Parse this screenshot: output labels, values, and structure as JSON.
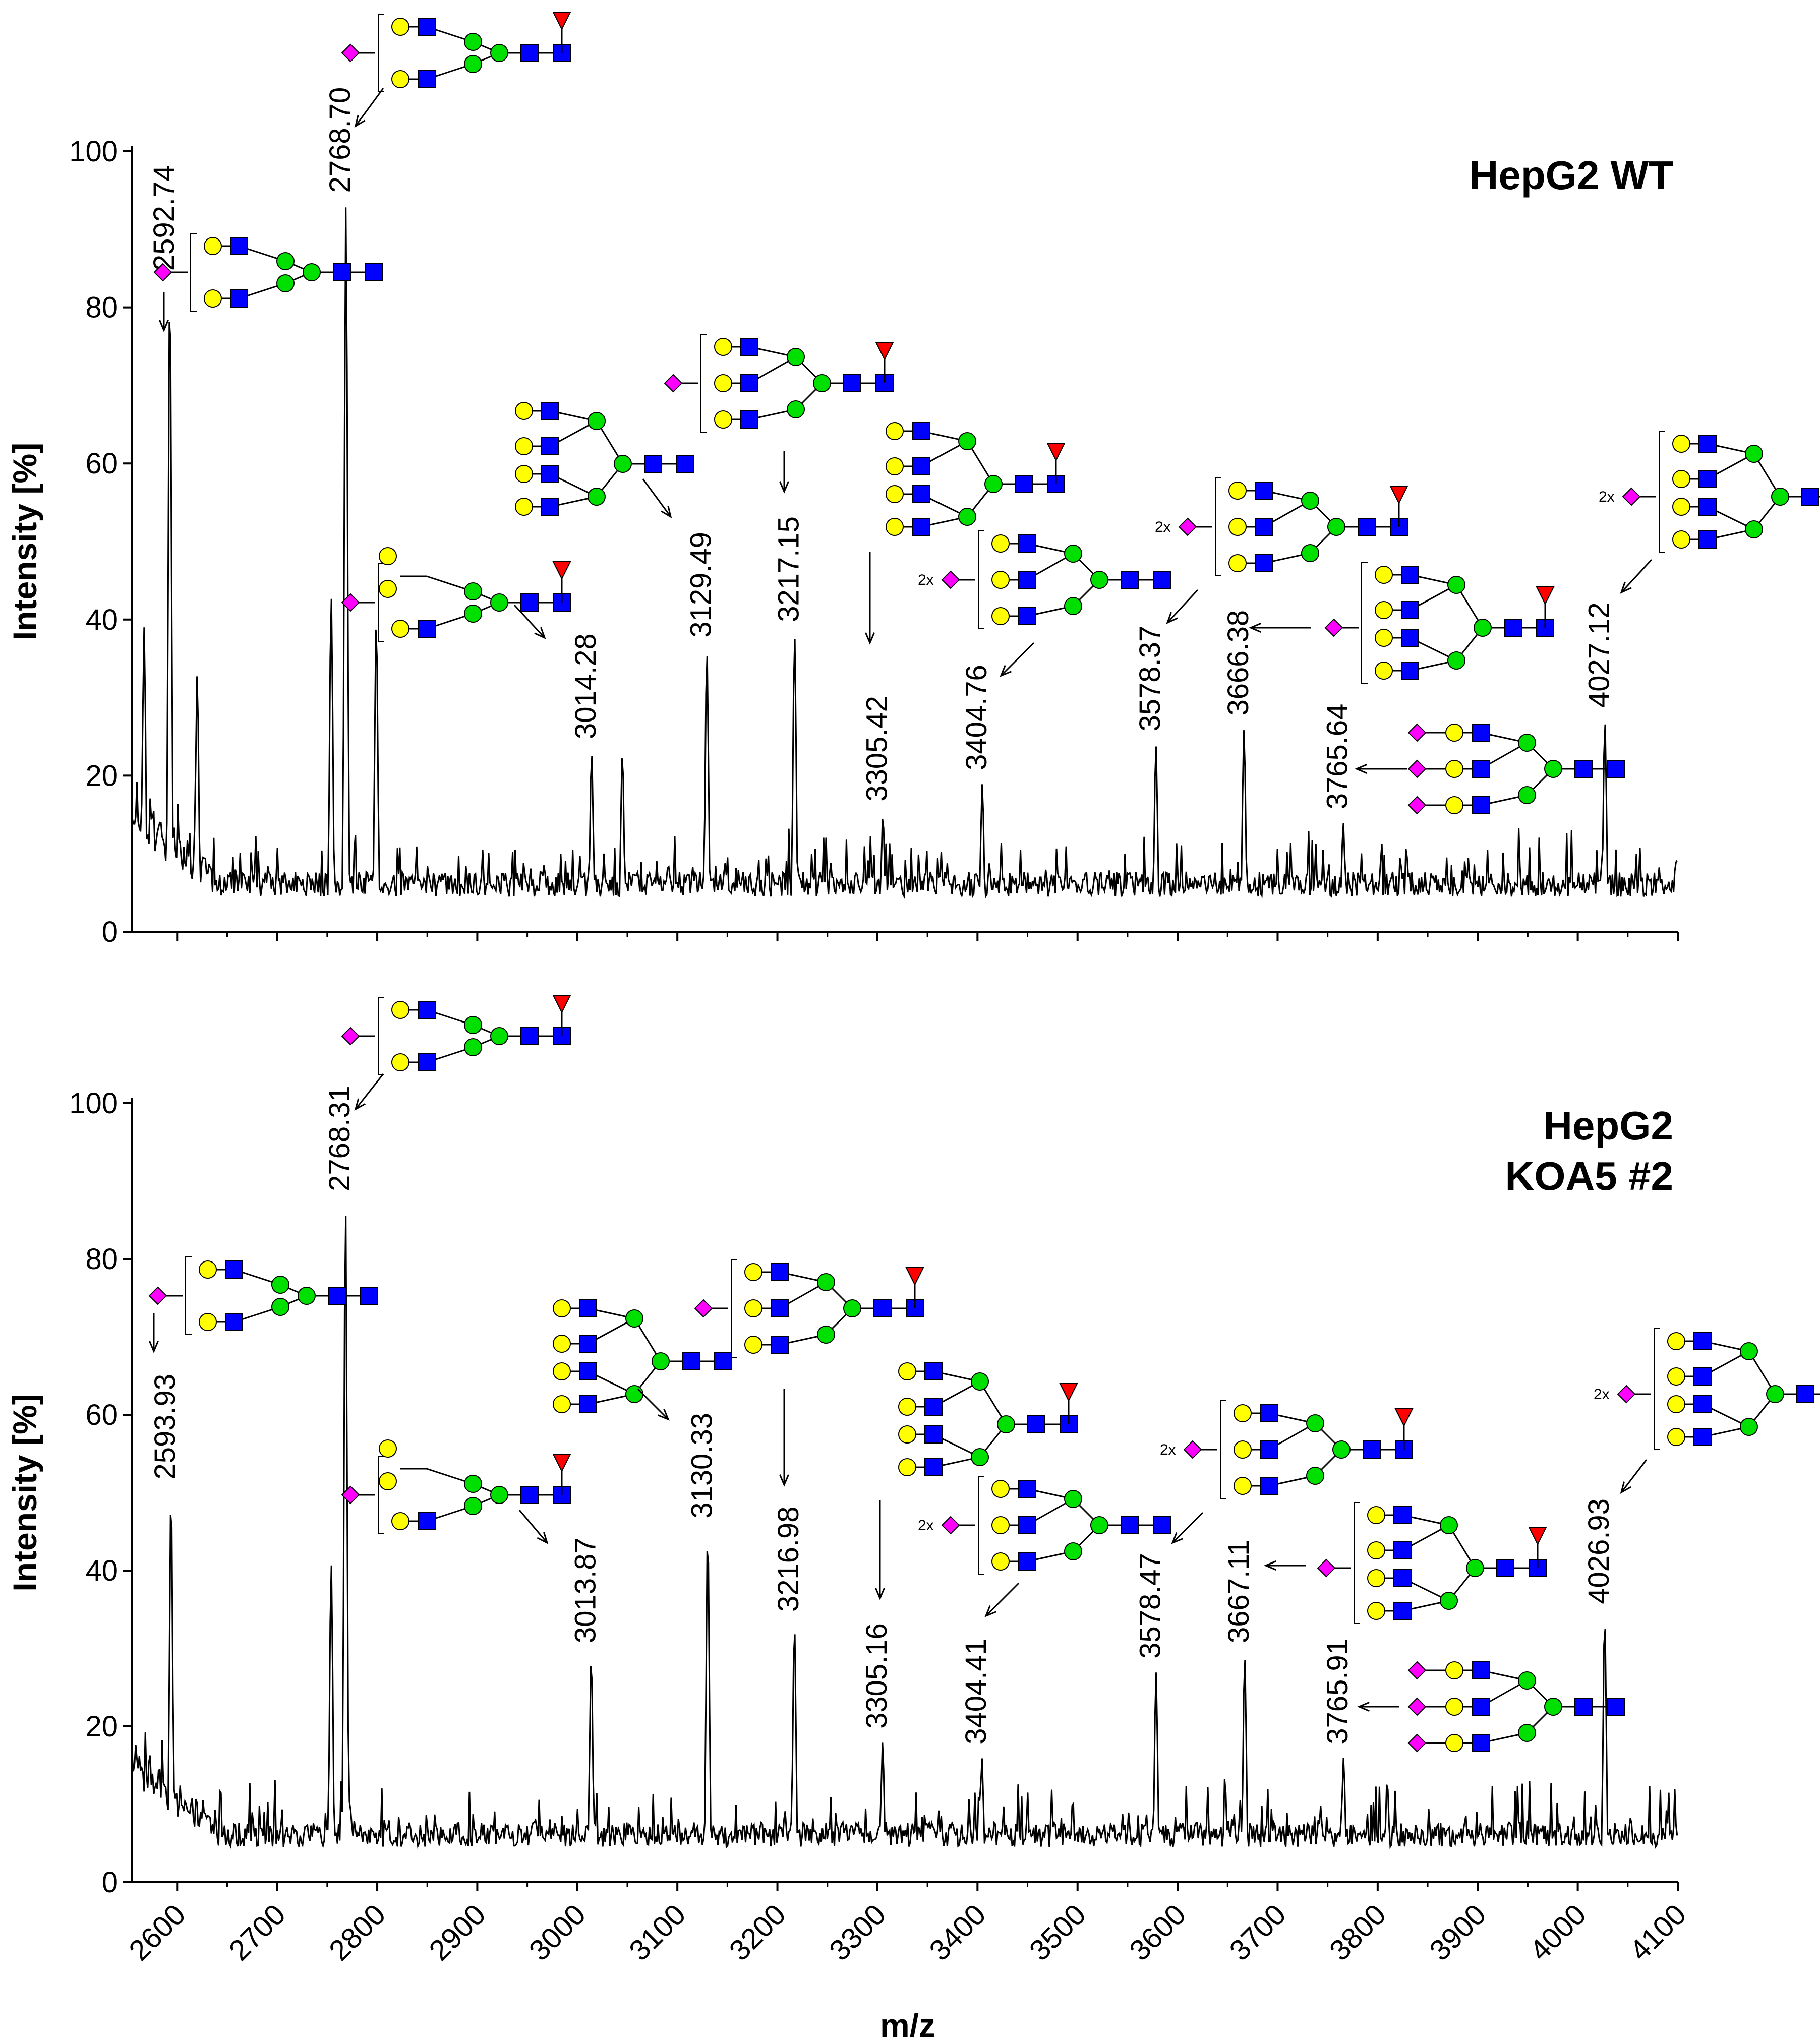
{
  "colors": {
    "sialic_acid": "#ff00ff",
    "galactose": "#ffff00",
    "glcnac": "#0000ff",
    "mannose": "#00e000",
    "fucose": "#ff0000",
    "spectrum": "#000000"
  },
  "chart_data": [
    {
      "type": "line",
      "panel": "top",
      "title": "HepG2 WT",
      "xlabel": "",
      "ylabel": "Intensity [%]",
      "xlim": [
        2555,
        4100
      ],
      "ylim": [
        0,
        100
      ],
      "yticks": [
        0,
        20,
        40,
        60,
        80,
        100
      ],
      "yticklabels": [
        "0",
        "20",
        "40",
        "60",
        "80",
        "100"
      ],
      "noise_seed": 17,
      "peaks": [
        {
          "x": 2567,
          "y": 39,
          "labeled": false
        },
        {
          "x": 2592.74,
          "y": 83,
          "label": "2592.74",
          "glycan": "A2G2S1"
        },
        {
          "x": 2620,
          "y": 33,
          "labeled": false
        },
        {
          "x": 2754,
          "y": 43,
          "labeled": false
        },
        {
          "x": 2768.7,
          "y": 93,
          "label": "2768.70",
          "glycan": "FA2G2S1"
        },
        {
          "x": 2799,
          "y": 40,
          "labeled": false
        },
        {
          "x": 3014.28,
          "y": 23,
          "label": "3014.28",
          "glycan": "FA2G2S1-bisect"
        },
        {
          "x": 3045,
          "y": 23,
          "labeled": false
        },
        {
          "x": 3129.49,
          "y": 36,
          "label": "3129.49",
          "glycan": "A3G3"
        },
        {
          "x": 3217.15,
          "y": 38,
          "label": "3217.15",
          "glycan": "FA3G3S1"
        },
        {
          "x": 3305.42,
          "y": 15,
          "label": "3305.42",
          "glycan": "FA4G4"
        },
        {
          "x": 3404.76,
          "y": 19,
          "label": "3404.76",
          "glycan": "A3G3S2"
        },
        {
          "x": 3578.37,
          "y": 24,
          "label": "3578.37",
          "glycan": "FA3G3S2"
        },
        {
          "x": 3666.38,
          "y": 26,
          "label": "3666.38",
          "glycan": "FA4G4S1"
        },
        {
          "x": 3765.64,
          "y": 14,
          "label": "3765.64",
          "glycan": "A3G3S3"
        },
        {
          "x": 4027.12,
          "y": 27,
          "label": "4027.12",
          "glycan": "FA4G4S2"
        }
      ]
    },
    {
      "type": "line",
      "panel": "bottom",
      "title": "HepG2\nKOA5 #2",
      "xlabel": "m/z",
      "ylabel": "Intensity [%]",
      "xlim": [
        2555,
        4100
      ],
      "ylim": [
        0,
        100
      ],
      "xticks": [
        2600,
        2700,
        2800,
        2900,
        3000,
        3100,
        3200,
        3300,
        3400,
        3500,
        3600,
        3700,
        3800,
        3900,
        4000,
        4100
      ],
      "xticklabels": [
        "2600",
        "2700",
        "2800",
        "2900",
        "3000",
        "3100",
        "3200",
        "3300",
        "3400",
        "3500",
        "3600",
        "3700",
        "3800",
        "3900",
        "4000",
        "4100"
      ],
      "yticks": [
        0,
        20,
        40,
        60,
        80,
        100
      ],
      "yticklabels": [
        "0",
        "20",
        "40",
        "60",
        "80",
        "100"
      ],
      "noise_seed": 53,
      "peaks": [
        {
          "x": 2593.93,
          "y": 50,
          "label": "2593.93",
          "glycan": "A2G2S1"
        },
        {
          "x": 2754,
          "y": 41,
          "labeled": false
        },
        {
          "x": 2768.31,
          "y": 87,
          "label": "2768.31",
          "glycan": "FA2G2S1"
        },
        {
          "x": 3013.87,
          "y": 29,
          "label": "3013.87",
          "glycan": "FA2G2S1-bisect"
        },
        {
          "x": 3130.33,
          "y": 45,
          "label": "3130.33",
          "glycan": "A3G3"
        },
        {
          "x": 3216.98,
          "y": 33,
          "label": "3216.98",
          "glycan": "FA3G3S1"
        },
        {
          "x": 3305.16,
          "y": 18,
          "label": "3305.16",
          "glycan": "FA4G4"
        },
        {
          "x": 3404.41,
          "y": 16,
          "label": "3404.41",
          "glycan": "A3G3S2"
        },
        {
          "x": 3578.47,
          "y": 27,
          "label": "3578.47",
          "glycan": "FA3G3S2"
        },
        {
          "x": 3667.11,
          "y": 29,
          "label": "3667.11",
          "glycan": "FA4G4S1"
        },
        {
          "x": 3765.91,
          "y": 16,
          "label": "3765.91",
          "glycan": "A3G3S3"
        },
        {
          "x": 4026.93,
          "y": 34,
          "label": "4026.93",
          "glycan": "FA4G4S2"
        }
      ]
    }
  ],
  "glycan_multipliers": {
    "two": "2x"
  }
}
